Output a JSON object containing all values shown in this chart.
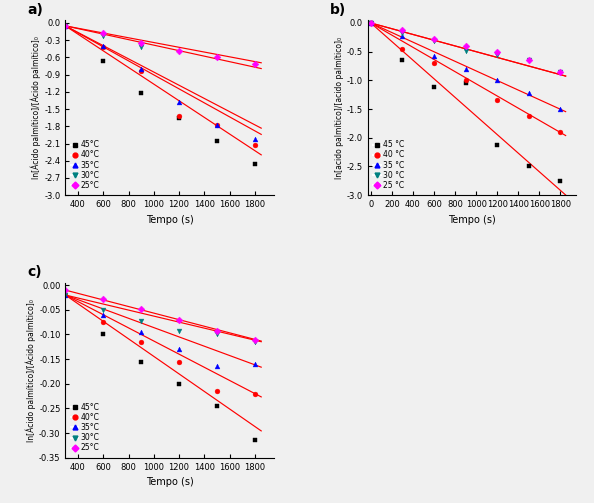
{
  "panel_a": {
    "title": "a)",
    "xlabel": "Tempo (s)",
    "xlim": [
      300,
      1950
    ],
    "ylim": [
      -3.0,
      0.05
    ],
    "xticks": [
      400,
      600,
      800,
      1000,
      1200,
      1400,
      1600,
      1800
    ],
    "yticks": [
      0.0,
      -0.3,
      -0.6,
      -0.9,
      -1.2,
      -1.5,
      -1.8,
      -2.1,
      -2.4,
      -2.7,
      -3.0
    ],
    "series": {
      "45C": {
        "x": [
          300,
          600,
          900,
          1200,
          1500,
          1800
        ],
        "y": [
          -0.05,
          -0.67,
          -1.22,
          -1.65,
          -2.05,
          -2.45
        ],
        "color": "#000000",
        "marker": "s",
        "label": "45°C",
        "fit_x": [
          300,
          1850
        ],
        "fit_slope": -0.00145
      },
      "40C": {
        "x": [
          300,
          600,
          900,
          1200,
          1500,
          1800
        ],
        "y": [
          -0.05,
          -0.42,
          -0.83,
          -1.62,
          -1.78,
          -2.12
        ],
        "color": "#FF0000",
        "marker": "o",
        "label": "40°C",
        "fit_x": [
          300,
          1850
        ],
        "fit_slope": -0.00122
      },
      "35C": {
        "x": [
          300,
          600,
          900,
          1200,
          1500,
          1800
        ],
        "y": [
          -0.05,
          -0.4,
          -0.8,
          -1.38,
          -1.77,
          -2.02
        ],
        "color": "#0000FF",
        "marker": "^",
        "label": "35°C",
        "fit_x": [
          300,
          1850
        ],
        "fit_slope": -0.00115
      },
      "30C": {
        "x": [
          300,
          600,
          900
        ],
        "y": [
          -0.05,
          -0.22,
          -0.42
        ],
        "color": "#008080",
        "marker": "v",
        "label": "30°C",
        "fit_x": [
          300,
          1850
        ],
        "fit_slope": -0.00048
      },
      "25C": {
        "x": [
          300,
          600,
          900,
          1200,
          1500,
          1800
        ],
        "y": [
          -0.05,
          -0.18,
          -0.35,
          -0.48,
          -0.6,
          -0.72
        ],
        "color": "#FF00FF",
        "marker": "D",
        "label": "25°C",
        "fit_x": [
          300,
          1850
        ],
        "fit_slope": -0.000415
      }
    }
  },
  "panel_b": {
    "title": "b)",
    "xlabel": "Tempo (s)",
    "xlim": [
      -30,
      1950
    ],
    "ylim": [
      -3.0,
      0.05
    ],
    "xticks": [
      0,
      200,
      400,
      600,
      800,
      1000,
      1200,
      1400,
      1600,
      1800
    ],
    "yticks": [
      0.0,
      -0.5,
      -1.0,
      -1.5,
      -2.0,
      -2.5,
      -3.0
    ],
    "series": {
      "45C": {
        "x": [
          0,
          300,
          600,
          900,
          1200,
          1500,
          1800
        ],
        "y": [
          0.0,
          -0.65,
          -1.12,
          -1.05,
          -2.12,
          -2.5,
          -2.75
        ],
        "color": "#000000",
        "marker": "s",
        "label": "45 °C",
        "fit_x": [
          0,
          1850
        ],
        "fit_slope": -0.00162
      },
      "40C": {
        "x": [
          0,
          300,
          600,
          900,
          1200,
          1500,
          1800
        ],
        "y": [
          0.0,
          -0.45,
          -0.7,
          -1.0,
          -1.35,
          -1.62,
          -1.9
        ],
        "color": "#FF0000",
        "marker": "o",
        "label": "40 °C",
        "fit_x": [
          0,
          1850
        ],
        "fit_slope": -0.00106
      },
      "35C": {
        "x": [
          0,
          300,
          600,
          900,
          1200,
          1500,
          1800
        ],
        "y": [
          0.0,
          -0.22,
          -0.58,
          -0.8,
          -1.0,
          -1.22,
          -1.5
        ],
        "color": "#0000FF",
        "marker": "^",
        "label": "35 °C",
        "fit_x": [
          0,
          1850
        ],
        "fit_slope": -0.000835
      },
      "30C": {
        "x": [
          0,
          300,
          600,
          900,
          1200,
          1500,
          1800
        ],
        "y": [
          0.0,
          -0.18,
          -0.32,
          -0.48,
          -0.55,
          -0.65,
          -0.85
        ],
        "color": "#008080",
        "marker": "v",
        "label": "30 °C",
        "fit_x": [
          0,
          1850
        ],
        "fit_slope": -0.0005
      },
      "25C": {
        "x": [
          0,
          300,
          600,
          900,
          1200,
          1500,
          1800
        ],
        "y": [
          0.0,
          -0.12,
          -0.28,
          -0.4,
          -0.5,
          -0.65,
          -0.85
        ],
        "color": "#FF00FF",
        "marker": "D",
        "label": "25 °C",
        "fit_x": [
          0,
          1850
        ],
        "fit_slope": -0.0005
      }
    }
  },
  "panel_c": {
    "title": "c)",
    "xlabel": "Tempo (s)",
    "xlim": [
      300,
      1950
    ],
    "ylim": [
      -0.35,
      0.005
    ],
    "xticks": [
      400,
      600,
      800,
      1000,
      1200,
      1400,
      1600,
      1800
    ],
    "yticks": [
      0.0,
      -0.05,
      -0.1,
      -0.15,
      -0.2,
      -0.25,
      -0.3,
      -0.35
    ],
    "series": {
      "45C": {
        "x": [
          300,
          600,
          900,
          1200,
          1500,
          1800
        ],
        "y": [
          -0.02,
          -0.1,
          -0.155,
          -0.2,
          -0.245,
          -0.315
        ],
        "color": "#000000",
        "marker": "s",
        "label": "45°C",
        "fit_x": [
          300,
          1850
        ],
        "fit_slope": -0.0001778
      },
      "40C": {
        "x": [
          300,
          600,
          900,
          1200,
          1500,
          1800
        ],
        "y": [
          -0.02,
          -0.075,
          -0.115,
          -0.155,
          -0.215,
          -0.22
        ],
        "color": "#FF0000",
        "marker": "o",
        "label": "40°C",
        "fit_x": [
          300,
          1850
        ],
        "fit_slope": -0.0001333
      },
      "35C": {
        "x": [
          300,
          600,
          900,
          1200,
          1500,
          1800
        ],
        "y": [
          -0.02,
          -0.06,
          -0.095,
          -0.13,
          -0.163,
          -0.16
        ],
        "color": "#0000FF",
        "marker": "^",
        "label": "35°C",
        "fit_x": [
          300,
          1850
        ],
        "fit_slope": -9.44e-05
      },
      "30C": {
        "x": [
          300,
          600,
          900,
          1200,
          1500,
          1800
        ],
        "y": [
          -0.02,
          -0.05,
          -0.072,
          -0.092,
          -0.1,
          -0.115
        ],
        "color": "#008080",
        "marker": "v",
        "label": "30°C",
        "fit_x": [
          300,
          1850
        ],
        "fit_slope": -6.11e-05
      },
      "25C": {
        "x": [
          300,
          600,
          900,
          1200,
          1500,
          1800
        ],
        "y": [
          -0.01,
          -0.028,
          -0.048,
          -0.07,
          -0.092,
          -0.112
        ],
        "color": "#FF00FF",
        "marker": "D",
        "label": "25°C",
        "fit_x": [
          300,
          1850
        ],
        "fit_slope": -6.67e-05
      }
    }
  },
  "ylabel_a": "ln[Ácido palmítico]/[Ácido palmítico]₀",
  "ylabel_b": "ln[acido palmítico]/[acido palmítico]₀",
  "ylabel_c": "ln[Ácido palmítico]/[Ácido palmítico]₀",
  "bg_color": "#f0f0f0"
}
